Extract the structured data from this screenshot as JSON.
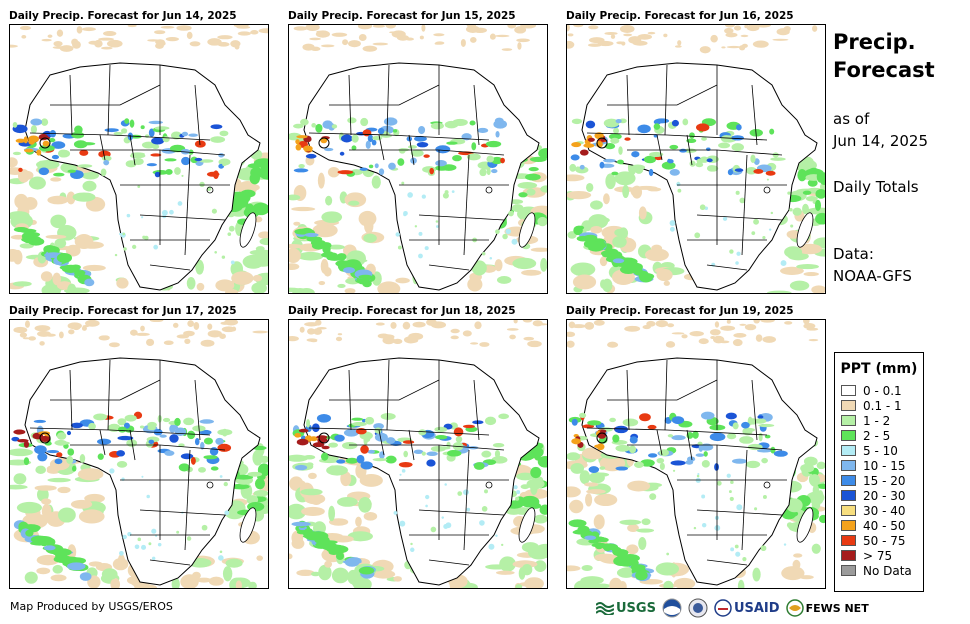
{
  "panels": [
    {
      "title": "Daily Precip. Forecast for Jun 14, 2025"
    },
    {
      "title": "Daily Precip. Forecast for Jun 15, 2025"
    },
    {
      "title": "Daily Precip. Forecast for Jun 16, 2025"
    },
    {
      "title": "Daily Precip. Forecast for Jun 17, 2025"
    },
    {
      "title": "Daily Precip. Forecast for Jun 18, 2025"
    },
    {
      "title": "Daily Precip. Forecast for Jun 19, 2025"
    }
  ],
  "side": {
    "title_line1": "Precip.",
    "title_line2": "Forecast",
    "asof_line1": "as of",
    "asof_line2": "Jun 14, 2025",
    "totals": "Daily Totals",
    "data_line1": "Data:",
    "data_line2": "NOAA-GFS"
  },
  "legend": {
    "title": "PPT (mm)",
    "items": [
      {
        "label": "0 - 0.1",
        "color": "#ffffff"
      },
      {
        "label": "0.1 - 1",
        "color": "#f0d9b5"
      },
      {
        "label": "1 - 2",
        "color": "#b5f0a6"
      },
      {
        "label": "2 - 5",
        "color": "#5ee35a"
      },
      {
        "label": "5 - 10",
        "color": "#b3ecf5"
      },
      {
        "label": "10 - 15",
        "color": "#7fb7ee"
      },
      {
        "label": "15 - 20",
        "color": "#3d8be8"
      },
      {
        "label": "20 - 30",
        "color": "#1b54d6"
      },
      {
        "label": "30 - 40",
        "color": "#f7de7e"
      },
      {
        "label": "40 - 50",
        "color": "#f4a21c"
      },
      {
        "label": "50 - 75",
        "color": "#e83a12"
      },
      {
        "label": "> 75",
        "color": "#a51c1c"
      },
      {
        "label": "No Data",
        "color": "#9b9b9b"
      }
    ]
  },
  "footer": {
    "credit": "Map Produced by USGS/EROS",
    "logos": {
      "usgs": "USGS",
      "usaid": "USAID",
      "fews": "FEWS NET"
    }
  }
}
